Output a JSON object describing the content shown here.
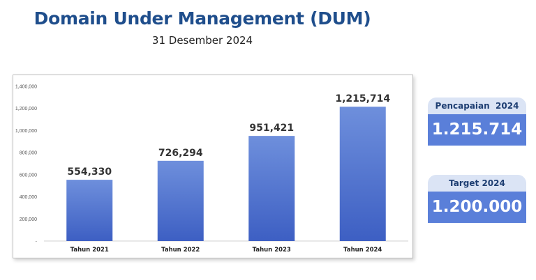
{
  "title": "Domain Under Management (DUM)",
  "subtitle": "31 Desember 2024",
  "chart_data": {
    "type": "bar",
    "categories": [
      "Tahun 2021",
      "Tahun 2022",
      "Tahun 2023",
      "Tahun 2024"
    ],
    "values": [
      554330,
      726294,
      951421,
      1215714
    ],
    "value_labels": [
      "554,330",
      "726,294",
      "951,421",
      "1,215,714"
    ],
    "ylim": [
      0,
      1400000
    ],
    "yticks": [
      0,
      200000,
      400000,
      600000,
      800000,
      1000000,
      1200000,
      1400000
    ],
    "ytick_labels": [
      "-",
      "200,000",
      "400,000",
      "600,000",
      "800,000",
      "1,000,000",
      "1,200,000",
      "1,400,000"
    ],
    "grid": false,
    "bar_color_top": "#6e8fdc",
    "bar_color_bottom": "#3d5fc3"
  },
  "cards": {
    "achievement": {
      "label": "Pencapaian  2024",
      "value": "1.215.714"
    },
    "target": {
      "label": "Target 2024",
      "value": "1.200.000"
    }
  },
  "colors": {
    "title": "#1f4e8c",
    "card_header_bg": "#dbe4f5",
    "card_value_bg": "#5a7fd9"
  }
}
